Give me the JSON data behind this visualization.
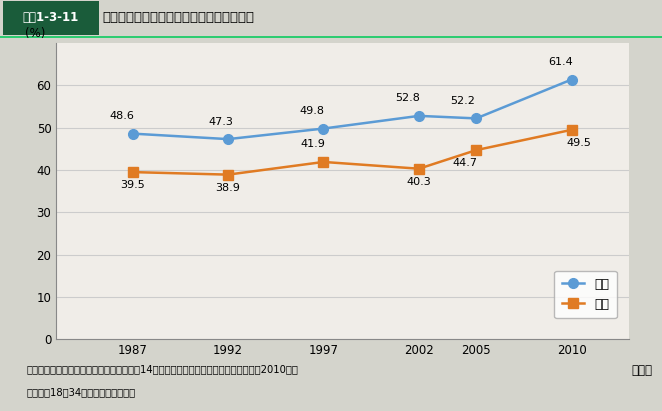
{
  "title": "交際している異性はいない人の割合の推移",
  "title_prefix": "図表1-3-11",
  "years": [
    1987,
    1992,
    1997,
    2002,
    2005,
    2010
  ],
  "male_values": [
    48.6,
    47.3,
    49.8,
    52.8,
    52.2,
    61.4
  ],
  "female_values": [
    39.5,
    38.9,
    41.9,
    40.3,
    44.7,
    49.5
  ],
  "male_label": "男性",
  "female_label": "女性",
  "male_color": "#5b9bd5",
  "female_color": "#e07b23",
  "ylim": [
    0,
    70
  ],
  "yticks": [
    0,
    10,
    20,
    30,
    40,
    50,
    60
  ],
  "ylabel": "(%)",
  "xlabel": "（年）",
  "note1": "資料：国立社会保障・人口問題研究所「第14回出生動向基本調査（独身者調査）」（2010年）",
  "note2": "（注）　18～34歳の未婚男女を対象",
  "bg_color": "#d4d4cc",
  "plot_bg_color": "#f0ede8",
  "header_bg": "#3d9970",
  "header_prefix_bg": "#1a5c3a",
  "header_border": "#2ecc71"
}
